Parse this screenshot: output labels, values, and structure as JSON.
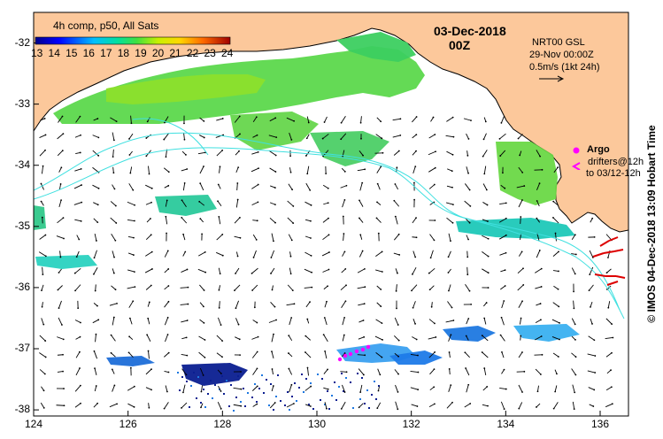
{
  "map": {
    "lon_range": [
      124,
      136.6
    ],
    "lat_range": [
      -38.1,
      -31.5
    ],
    "x_ticks": [
      "124",
      "126",
      "128",
      "130",
      "132",
      "134",
      "136"
    ],
    "y_ticks": [
      "-32",
      "-33",
      "-34",
      "-35",
      "-36",
      "-37",
      "-38"
    ],
    "colors": {
      "land": "#fcc89b",
      "ocean": "#ffffff",
      "argo": "#ff00ff",
      "drifter": "#dd0000",
      "currents_line": "#40e0e0"
    }
  },
  "colorbar": {
    "title": "4h comp, p50, All Sats",
    "ticks": [
      "13",
      "14",
      "15",
      "16",
      "17",
      "18",
      "19",
      "20",
      "21",
      "22",
      "23",
      "24"
    ]
  },
  "header": {
    "date": "03-Dec-2018",
    "time": "00Z"
  },
  "gsl_info": {
    "line1": "NRT00 GSL",
    "line2": "29-Nov 00:00Z",
    "line3": "0.5m/s (1kt 24h)"
  },
  "legend": {
    "argo_label": "Argo",
    "drifters_label": "drifters@12h",
    "drifters_range": "to 03/12-12h"
  },
  "footer": {
    "credit": "© IMOS 04-Dec-2018 13:09 Hobart Time"
  }
}
